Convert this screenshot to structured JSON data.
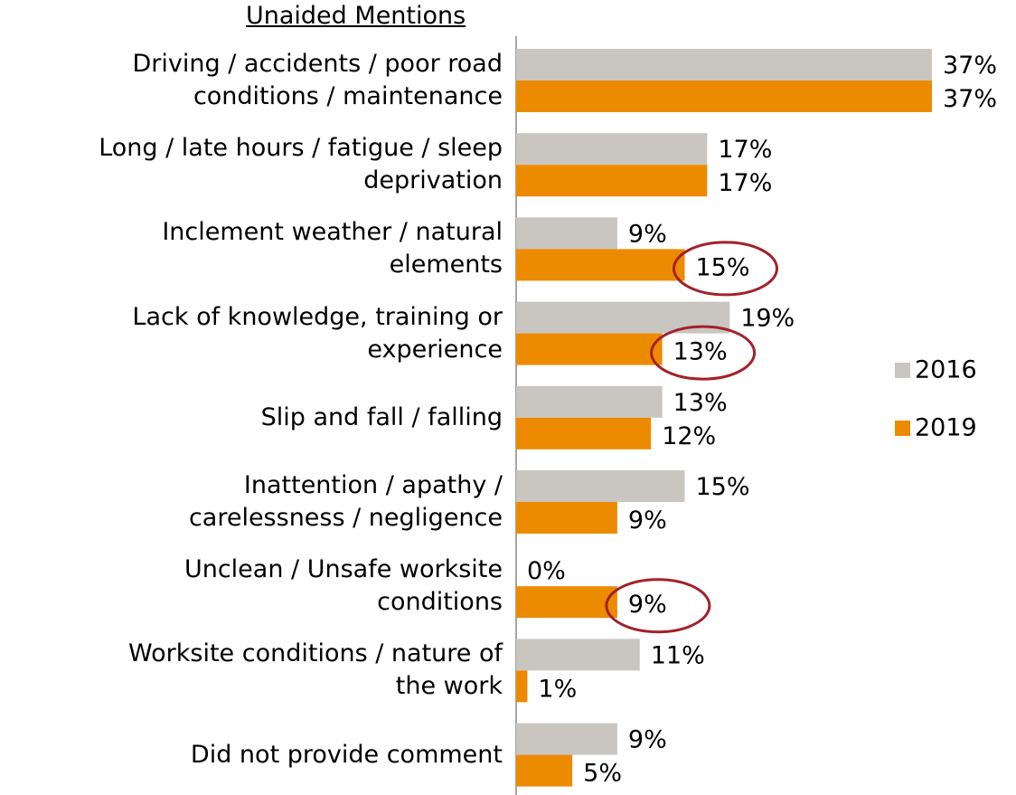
{
  "chart_data": {
    "type": "bar",
    "orientation": "horizontal",
    "title": "Unaided Mentions",
    "categories": [
      "Driving / accidents / poor road\nconditions / maintenance",
      "Long / late hours / fatigue / sleep\ndeprivation",
      "Inclement weather / natural\nelements",
      "Lack of knowledge, training or\nexperience",
      "Slip and fall / falling",
      "Inattention / apathy /\ncarelessness / negligence",
      "Unclean / Unsafe worksite\nconditions",
      "Worksite conditions / nature of\nthe work",
      "Did not provide comment"
    ],
    "series": [
      {
        "name": "2016",
        "color": "#c9c5c1",
        "values": [
          37,
          17,
          9,
          19,
          13,
          15,
          0,
          11,
          9
        ],
        "value_labels": [
          "37%",
          "17%",
          "9%",
          "19%",
          "13%",
          "15%",
          "0%",
          "11%",
          "9%"
        ]
      },
      {
        "name": "2019",
        "color": "#ec8b00",
        "values": [
          37,
          17,
          15,
          13,
          12,
          9,
          9,
          1,
          5
        ],
        "value_labels": [
          "37%",
          "17%",
          "15%",
          "13%",
          "12%",
          "9%",
          "9%",
          "1%",
          "5%"
        ],
        "highlight": [
          2,
          3,
          6
        ]
      }
    ],
    "xlim": [
      0,
      37
    ],
    "legend": "right",
    "highlight_color": "#a3212a"
  }
}
